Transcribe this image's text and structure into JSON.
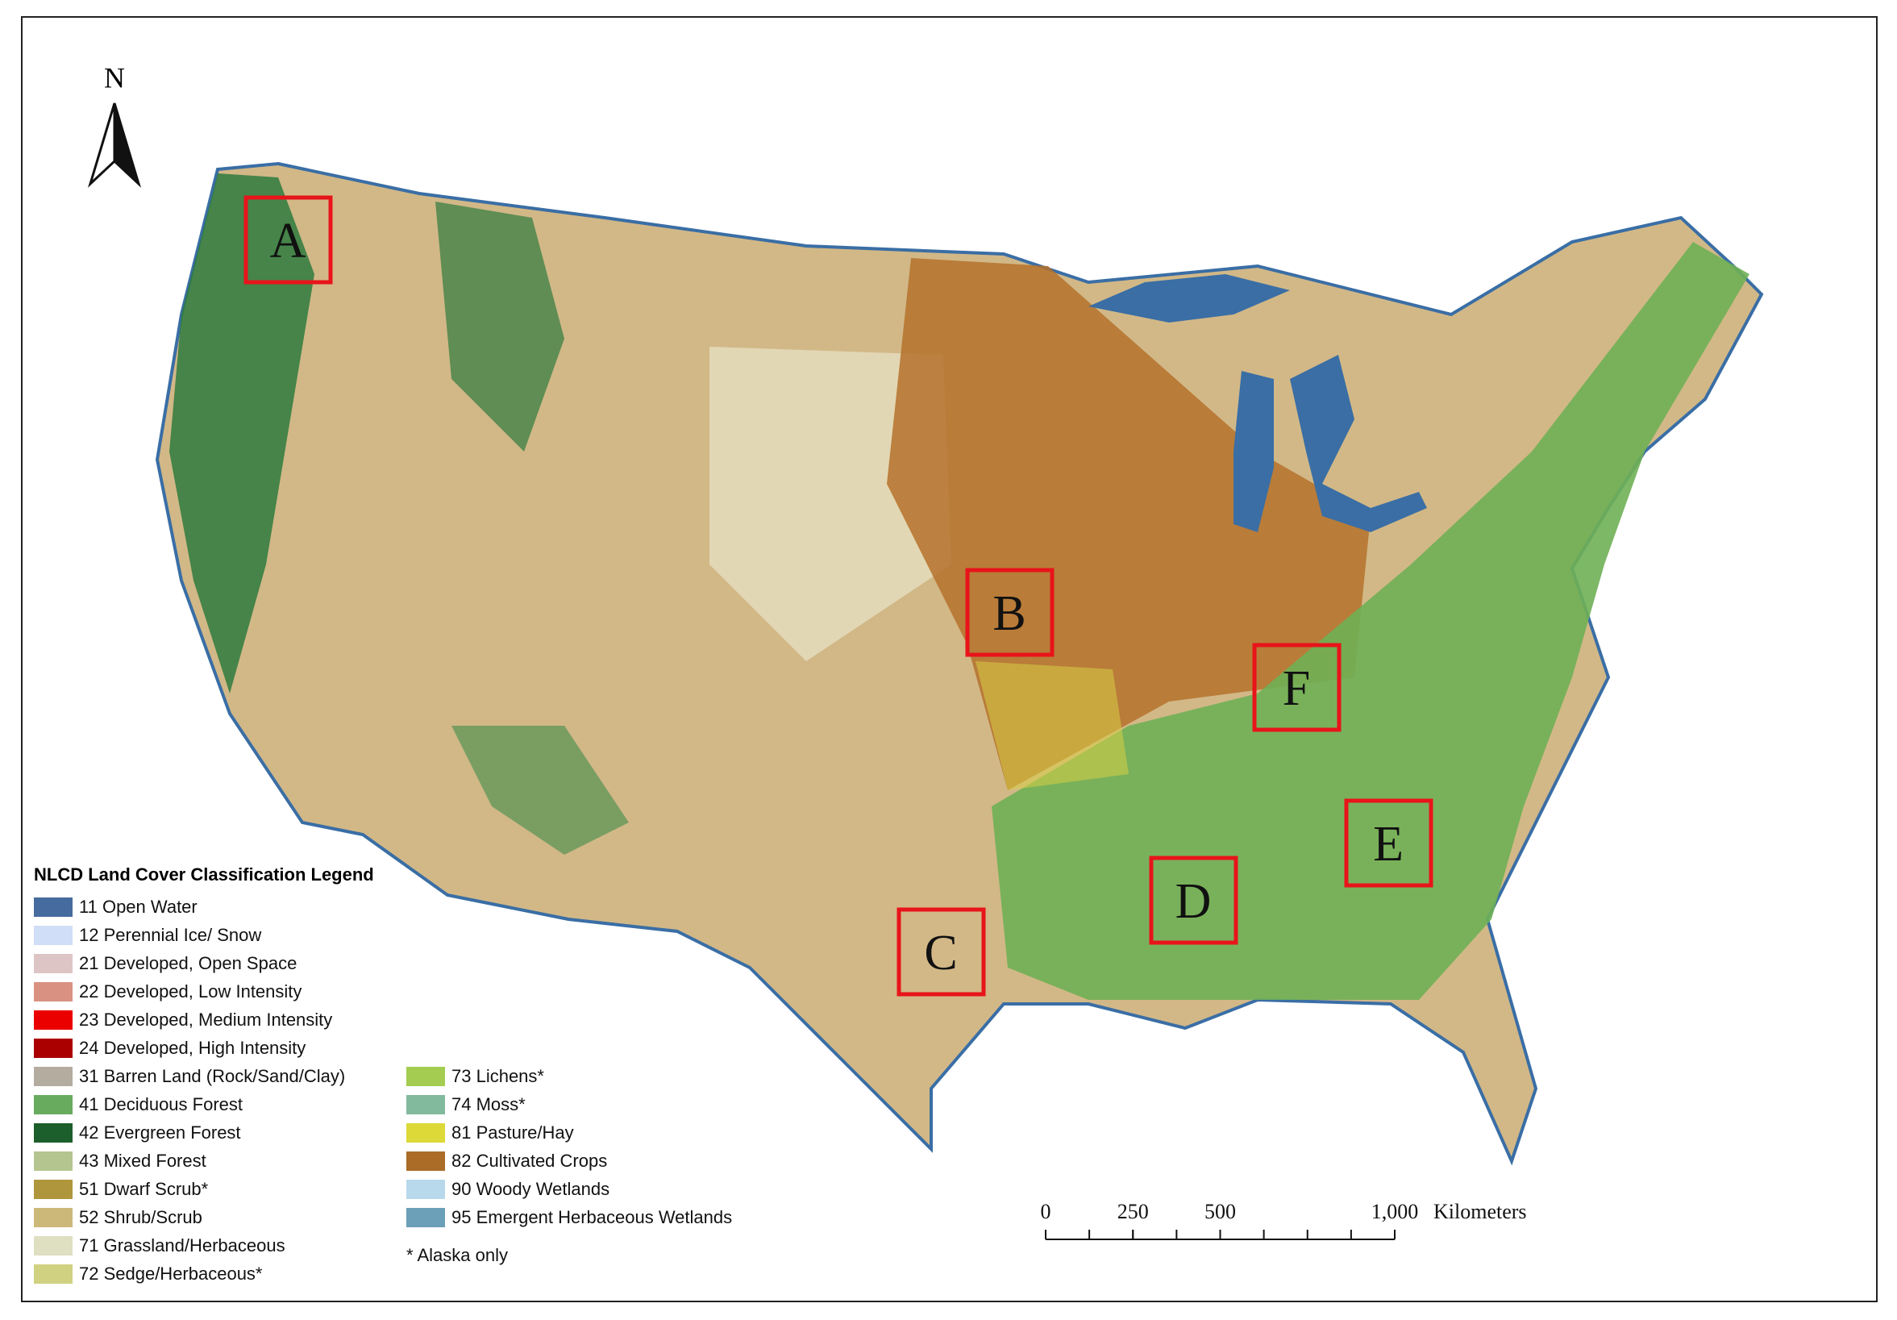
{
  "north_label": "N",
  "legend": {
    "title": "NLCD Land Cover Classification Legend",
    "items": [
      {
        "label": "11 Open Water",
        "color": "#466b9f"
      },
      {
        "label": "12 Perennial Ice/ Snow",
        "color": "#d1def8"
      },
      {
        "label": "21 Developed, Open Space",
        "color": "#dec5c5"
      },
      {
        "label": "22 Developed, Low Intensity",
        "color": "#d99282"
      },
      {
        "label": "23 Developed, Medium Intensity",
        "color": "#eb0000"
      },
      {
        "label": "24 Developed, High Intensity",
        "color": "#ab0000"
      },
      {
        "label": "31 Barren Land (Rock/Sand/Clay)",
        "color": "#b3ac9f"
      },
      {
        "label": "41 Deciduous Forest",
        "color": "#68ab5f"
      },
      {
        "label": "42 Evergreen Forest",
        "color": "#1c5f2c"
      },
      {
        "label": "43 Mixed Forest",
        "color": "#b5c58f"
      },
      {
        "label": "51 Dwarf Scrub*",
        "color": "#af963c"
      },
      {
        "label": "52 Shrub/Scrub",
        "color": "#ccb879"
      },
      {
        "label": "71 Grassland/Herbaceous",
        "color": "#dfdfc2"
      },
      {
        "label": "72 Sedge/Herbaceous*",
        "color": "#d1d182"
      },
      {
        "label": "73 Lichens*",
        "color": "#a3cc51"
      },
      {
        "label": "74 Moss*",
        "color": "#82ba9e"
      },
      {
        "label": "81 Pasture/Hay",
        "color": "#dcd939"
      },
      {
        "label": "82 Cultivated Crops",
        "color": "#ab6c28"
      },
      {
        "label": "90 Woody Wetlands",
        "color": "#b8d9eb"
      },
      {
        "label": "95 Emergent Herbaceous Wetlands",
        "color": "#6c9fb8"
      }
    ],
    "footnote": "* Alaska only"
  },
  "regions": [
    "A",
    "B",
    "C",
    "D",
    "E",
    "F"
  ],
  "scale_bar": {
    "unit": "Kilometers",
    "ticks": [
      0,
      250,
      500,
      {
        "value": 1000,
        "label": "1,000"
      }
    ]
  }
}
